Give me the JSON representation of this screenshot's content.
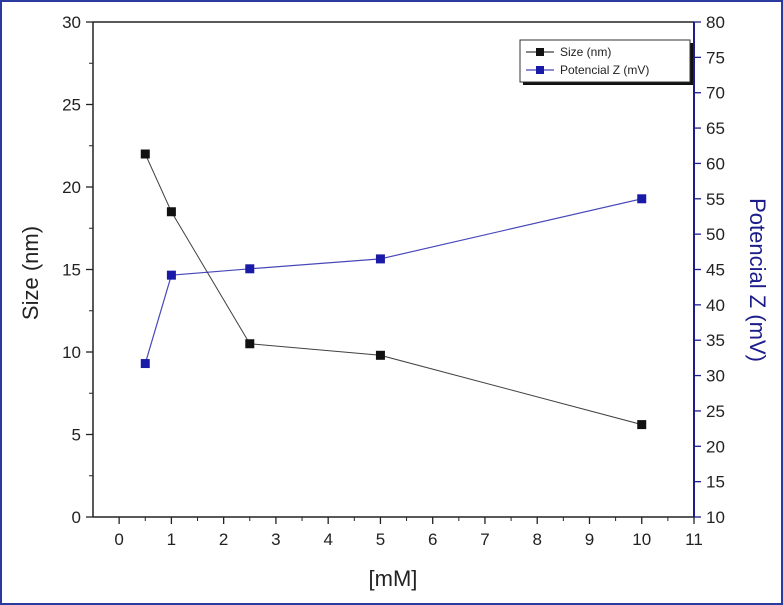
{
  "chart_data": {
    "type": "line",
    "title": "",
    "xlabel": "[mM]",
    "ylabel": "Size (nm)",
    "y2label": "Potencial Z (mV)",
    "xlim": [
      -0.5,
      11
    ],
    "ylim": [
      0,
      30
    ],
    "y2lim": [
      10,
      80
    ],
    "x_ticks": [
      0,
      1,
      2,
      3,
      4,
      5,
      6,
      7,
      8,
      9,
      10,
      11
    ],
    "y_ticks": [
      0,
      5,
      10,
      15,
      20,
      25,
      30
    ],
    "y2_ticks": [
      10,
      15,
      20,
      25,
      30,
      35,
      40,
      45,
      50,
      55,
      60,
      65,
      70,
      75,
      80
    ],
    "grid": false,
    "legend_position": "top-right",
    "series": [
      {
        "name": "Size (nm)",
        "axis": "left",
        "color": "#111111",
        "marker": "square",
        "x": [
          0.5,
          1,
          2.5,
          5,
          10
        ],
        "values": [
          22.0,
          18.5,
          10.5,
          9.8,
          5.6
        ]
      },
      {
        "name": "Potencial Z (mV)",
        "axis": "right",
        "color": "#1a1aa8",
        "marker": "square",
        "x": [
          0.5,
          1,
          2.5,
          5,
          10
        ],
        "values": [
          31.7,
          44.2,
          45.1,
          46.5,
          55.0
        ]
      }
    ],
    "colors": {
      "left_axis": "#222222",
      "right_axis": "#1c1c8a",
      "frame_border": "#2a3a9e"
    }
  }
}
